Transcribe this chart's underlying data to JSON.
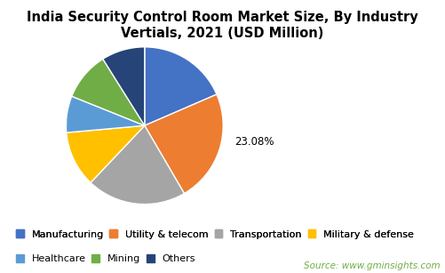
{
  "title": "India Security Control Room Market Size, By Industry\nVertials, 2021 (USD Million)",
  "slices": [
    {
      "label": "Manufacturing",
      "value": 18.5,
      "color": "#4472C4"
    },
    {
      "label": "Utility & telecom",
      "value": 23.08,
      "color": "#ED7D31"
    },
    {
      "label": "Transportation",
      "value": 20.5,
      "color": "#A5A5A5"
    },
    {
      "label": "Military & defense",
      "value": 11.5,
      "color": "#FFC000"
    },
    {
      "label": "Healthcare",
      "value": 7.5,
      "color": "#5B9BD5"
    },
    {
      "label": "Mining",
      "value": 10.0,
      "color": "#70AD47"
    },
    {
      "label": "Others",
      "value": 8.92,
      "color": "#264478"
    }
  ],
  "annotation_label": "23.08%",
  "annotation_slice_index": 1,
  "source_text": "Source: www.gminsights.com",
  "background_color": "#FFFFFF",
  "title_fontsize": 10.5,
  "legend_fontsize": 8,
  "source_fontsize": 7.5,
  "source_color": "#70AD47"
}
